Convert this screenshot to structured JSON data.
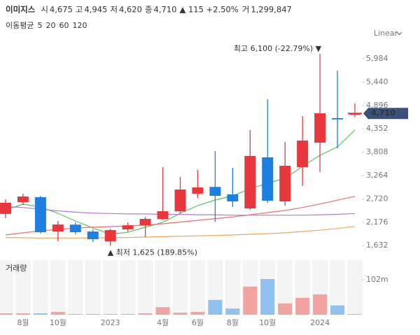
{
  "header": {
    "name": "이미지스",
    "fields": [
      {
        "label": "시",
        "value": "4,675"
      },
      {
        "label": "고",
        "value": "4,945"
      },
      {
        "label": "저",
        "value": "4,620"
      },
      {
        "label": "종",
        "value": "4,710"
      }
    ],
    "change": "▲ 115 +2.50%",
    "volume_label": "거",
    "volume": "1,299,847"
  },
  "controls": {
    "scale": "Linear"
  },
  "chart_data": [
    {
      "type": "candlestick",
      "series_label": "이동평균",
      "categories": [
        null,
        "8월",
        null,
        "10월",
        null,
        null,
        "2023",
        null,
        null,
        "4월",
        null,
        "6월",
        null,
        "8월",
        null,
        "10월",
        null,
        null,
        "2024",
        null,
        null
      ],
      "open": [
        2370,
        2645,
        2760,
        1960,
        2120,
        1960,
        1730,
        2010,
        2100,
        2250,
        2430,
        2840,
        2999,
        2824,
        2498,
        3688,
        2661,
        3460,
        4029,
        4600,
        4675
      ],
      "high": [
        2710,
        2840,
        2790,
        2205,
        2172,
        2010,
        2025,
        2170,
        2302,
        3459,
        3231,
        3394,
        3834,
        3443,
        4322,
        5039,
        4046,
        4648,
        6100,
        5707,
        4945
      ],
      "low": [
        2270,
        2580,
        1912,
        1733,
        1895,
        1716,
        1625,
        1960,
        1830,
        2221,
        2384,
        2742,
        2188,
        2530,
        2466,
        2628,
        2563,
        3020,
        3345,
        3899,
        4620
      ],
      "close": [
        2630,
        2775,
        1944,
        2123,
        1945,
        1781,
        1993,
        2105,
        2254,
        2433,
        2938,
        2987,
        2791,
        2661,
        3720,
        2677,
        3492,
        4078,
        4713,
        4570,
        4710
      ],
      "up_color": "#e8383d",
      "down_color": "#1f7fe0",
      "series": [
        {
          "name": "5",
          "color": "#5cbf5c",
          "values": [
            2465,
            2596,
            2530,
            2384,
            2205,
            2042,
            1895,
            1944,
            2058,
            2172,
            2384,
            2563,
            2693,
            2791,
            2954,
            3084,
            3198,
            3475,
            3736,
            3932,
            4322
          ]
        },
        {
          "name": "20",
          "color": "#ee6b6b",
          "values": [
            1880,
            1930,
            1975,
            2010,
            2040,
            2060,
            2075,
            2090,
            2110,
            2140,
            2180,
            2220,
            2260,
            2300,
            2350,
            2400,
            2450,
            2520,
            2600,
            2690,
            2780
          ]
        },
        {
          "name": "60",
          "color": "#f2a35e",
          "values": [
            1820,
            1815,
            1810,
            1810,
            1810,
            1810,
            1815,
            1820,
            1830,
            1840,
            1850,
            1860,
            1870,
            1880,
            1895,
            1910,
            1930,
            1960,
            1990,
            2030,
            2080
          ]
        },
        {
          "name": "120",
          "color": "#b679d6",
          "values": [
            2540,
            2520,
            2480,
            2440,
            2410,
            2390,
            2380,
            2370,
            2370,
            2360,
            2360,
            2350,
            2350,
            2340,
            2340,
            2340,
            2340,
            2340,
            2350,
            2360,
            2380
          ]
        }
      ],
      "ylim": [
        1407,
        6700
      ],
      "yticks": [
        {
          "value": 1632,
          "label": "1,632"
        },
        {
          "value": 2176,
          "label": "2,176"
        },
        {
          "value": 2720,
          "label": "2,720"
        },
        {
          "value": 3264,
          "label": "3,264"
        },
        {
          "value": 3808,
          "label": "3,808"
        },
        {
          "value": 4352,
          "label": "4,352"
        },
        {
          "value": 4896,
          "label": "4,896"
        },
        {
          "value": 5440,
          "label": "5,440"
        },
        {
          "value": 5984,
          "label": "5,984"
        }
      ],
      "current_price_label": "4,710",
      "annotations": [
        {
          "text": "최고 6,100 (-22.79%) ▼"
        },
        {
          "text": "▲ 최저 1,625 (189.85%)"
        }
      ]
    },
    {
      "type": "bar",
      "title": "거래량",
      "values": [
        4,
        4,
        4,
        8,
        2,
        2,
        2,
        2,
        4,
        22,
        6,
        8,
        43,
        18,
        82,
        104,
        33,
        49,
        59,
        27,
        2
      ],
      "up_color": "#f3a2a2",
      "down_color": "#8fc0f0",
      "ylim": [
        0,
        159
      ],
      "yticks": [
        {
          "value": 102,
          "label": "102m"
        }
      ]
    }
  ]
}
